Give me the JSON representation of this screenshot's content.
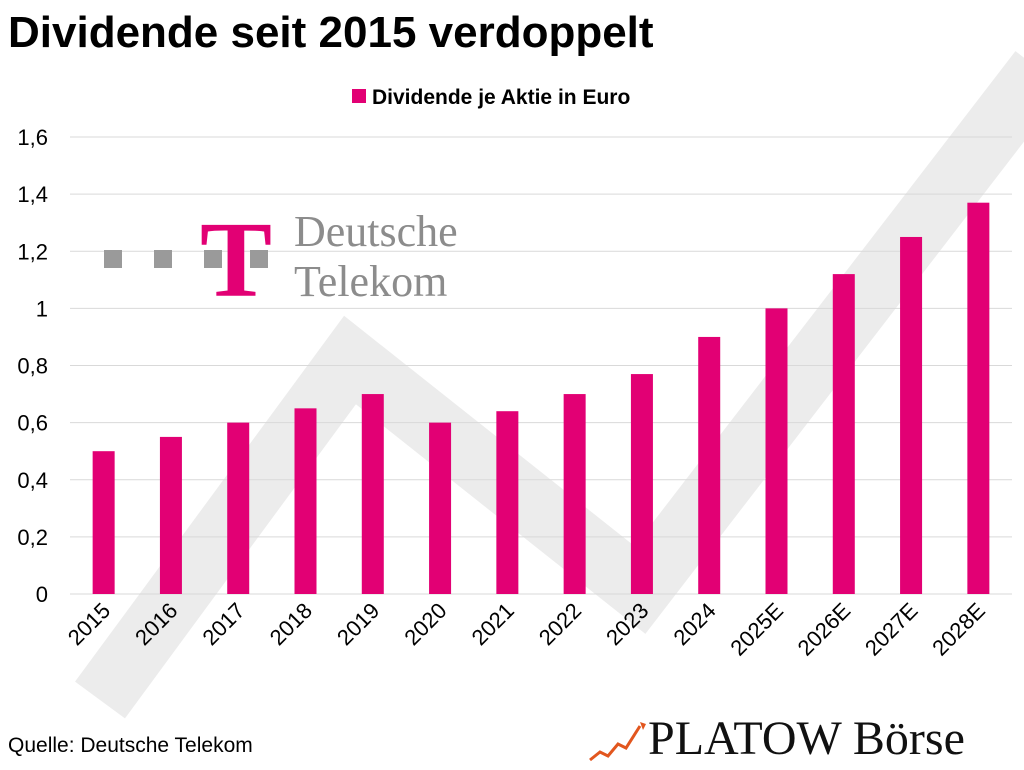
{
  "chart_data": {
    "type": "bar",
    "title": "Dividende seit 2015 verdoppelt",
    "categories": [
      "2015",
      "2016",
      "2017",
      "2018",
      "2019",
      "2020",
      "2021",
      "2022",
      "2023",
      "2024",
      "2025E",
      "2026E",
      "2027E",
      "2028E"
    ],
    "series": [
      {
        "name": "Dividende je Aktie in Euro",
        "values": [
          0.5,
          0.55,
          0.6,
          0.65,
          0.7,
          0.6,
          0.64,
          0.7,
          0.77,
          0.9,
          1.0,
          1.12,
          1.25,
          1.37
        ]
      }
    ],
    "yticks": [
      "0",
      "0,2",
      "0,4",
      "0,6",
      "0,8",
      "1",
      "1,2",
      "1,4",
      "1,6"
    ],
    "ylim": [
      0,
      1.6
    ],
    "grid": true,
    "legend": "top-center",
    "bar_color": "#E20074"
  },
  "source": "Quelle: Deutsche Telekom",
  "logos": {
    "telekom": {
      "line1": "Deutsche",
      "line2": "Telekom",
      "mark": "T",
      "color": "#E20074",
      "text_color": "#8C8C8C"
    },
    "platow": {
      "text": "PLATOW Börse",
      "icon": "chart-trend-icon"
    }
  }
}
